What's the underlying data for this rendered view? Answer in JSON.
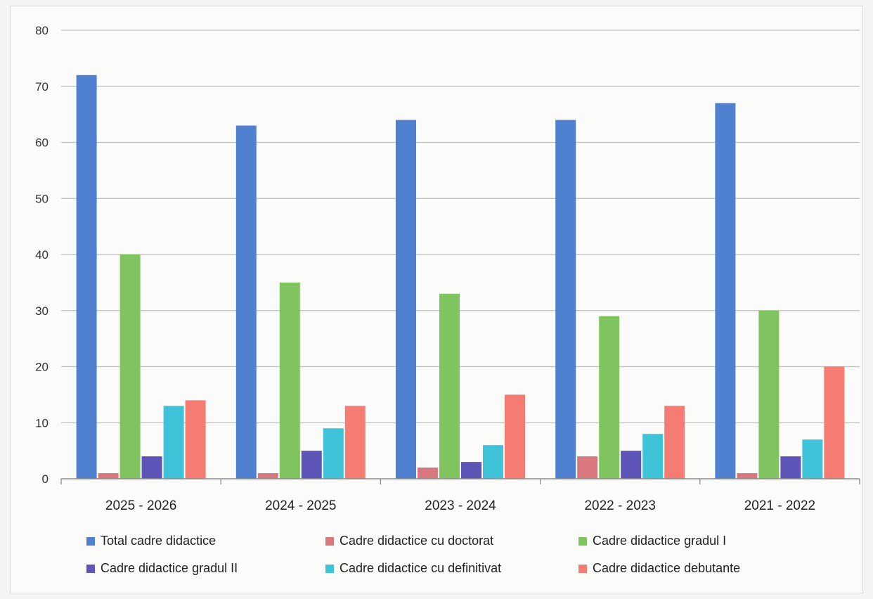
{
  "chart_data": {
    "type": "bar",
    "title": "",
    "xlabel": "",
    "ylabel": "",
    "ylim": [
      0,
      80
    ],
    "yticks": [
      0,
      10,
      20,
      30,
      40,
      50,
      60,
      70,
      80
    ],
    "grid": true,
    "legend_position": "bottom",
    "categories": [
      "2025 - 2026",
      "2024 - 2025",
      "2023 - 2024",
      "2022 - 2023",
      "2021 - 2022"
    ],
    "series": [
      {
        "name": "Total cadre didactice",
        "color": "#4f81d0",
        "values": [
          72,
          63,
          64,
          64,
          67
        ]
      },
      {
        "name": "Cadre didactice cu doctorat",
        "color": "#d9777f",
        "values": [
          1,
          1,
          2,
          4,
          1
        ]
      },
      {
        "name": "Cadre didactice gradul I",
        "color": "#7fc45f",
        "values": [
          40,
          35,
          33,
          29,
          30
        ]
      },
      {
        "name": "Cadre didactice gradul II",
        "color": "#5d56b8",
        "values": [
          4,
          5,
          3,
          5,
          4
        ]
      },
      {
        "name": "Cadre didactice cu definitivat",
        "color": "#3fc3d8",
        "values": [
          13,
          9,
          6,
          8,
          7
        ]
      },
      {
        "name": "Cadre didactice debutante",
        "color": "#f47c72",
        "values": [
          14,
          13,
          15,
          13,
          20
        ]
      }
    ]
  }
}
